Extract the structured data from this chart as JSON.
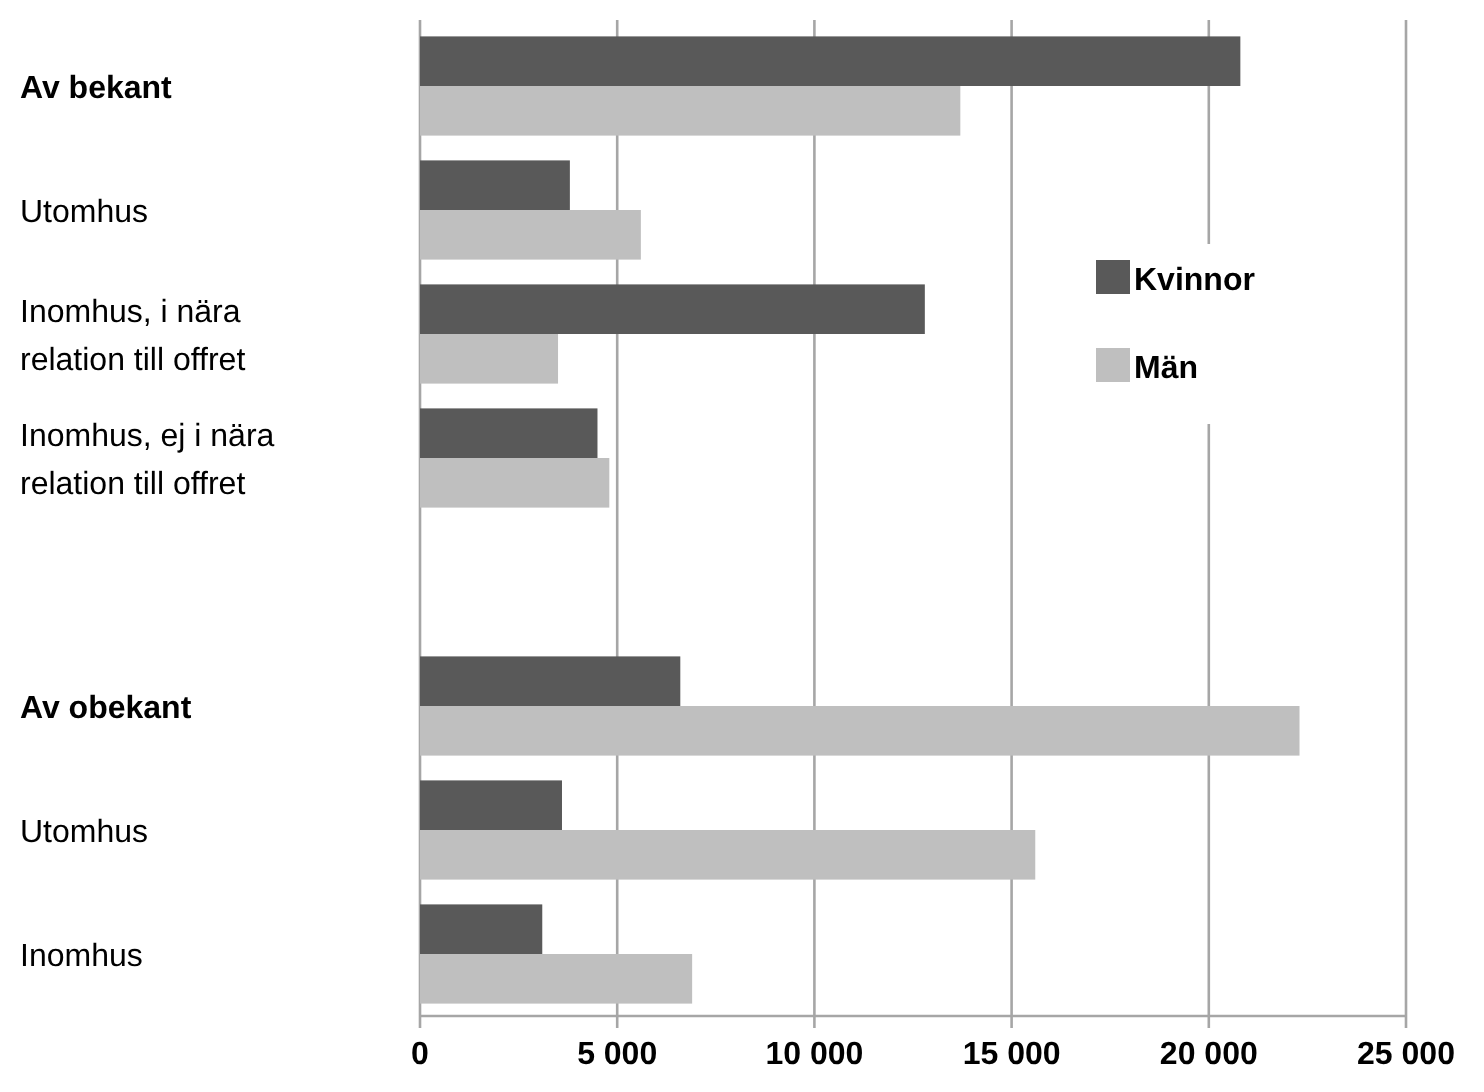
{
  "chart_data": {
    "type": "bar",
    "orientation": "horizontal",
    "categories": [
      "Av bekant",
      "Utomhus",
      "Inomhus, i nära relation till offret",
      "Inomhus, ej i nära relation till offret",
      null,
      "Av obekant",
      "Utomhus",
      "Inomhus"
    ],
    "series": [
      {
        "name": "Kvinnor",
        "color": "#595959",
        "values": [
          20800,
          3800,
          12800,
          4500,
          null,
          6600,
          3600,
          3100
        ]
      },
      {
        "name": "Män",
        "color": "#bfbfbf",
        "values": [
          13700,
          5600,
          3500,
          4800,
          null,
          22300,
          15600,
          6900
        ]
      }
    ],
    "xlim": [
      0,
      25000
    ],
    "xticks": [
      {
        "value": 0,
        "label": "0"
      },
      {
        "value": 5000,
        "label": "5 000"
      },
      {
        "value": 10000,
        "label": "10 000"
      },
      {
        "value": 15000,
        "label": "15 000"
      },
      {
        "value": 20000,
        "label": "20 000"
      },
      {
        "value": 25000,
        "label": "25 000"
      }
    ],
    "grid": "x",
    "legend": "right"
  }
}
